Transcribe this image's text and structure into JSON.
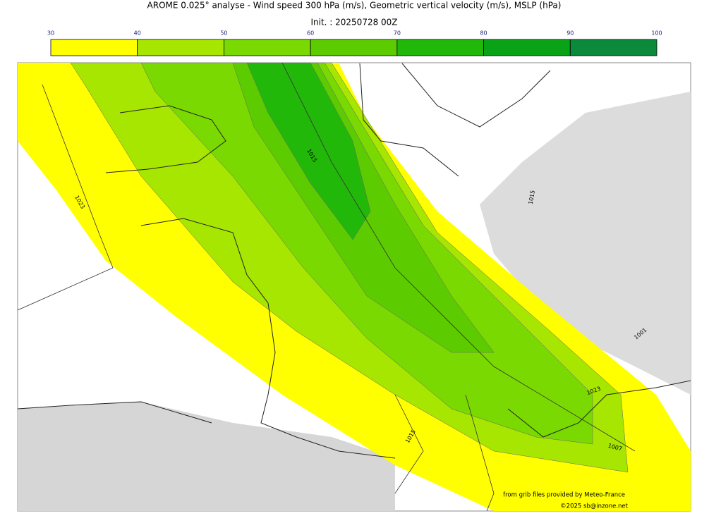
{
  "header": {
    "title": "AROME 0.025° analyse - Wind speed 300 hPa (m/s), Geometric vertical velocity (m/s), MSLP (hPa)",
    "init": "Init. : 20250728 00Z"
  },
  "colorbar": {
    "ticks": [
      30,
      40,
      50,
      60,
      70,
      80,
      90,
      100
    ],
    "colors": [
      "#ffff00",
      "#a6e600",
      "#79d900",
      "#5ccc00",
      "#22b80a",
      "#0aa318",
      "#0a8a3a",
      "#0a7a4a"
    ]
  },
  "contour_labels": [
    "1023",
    "1015",
    "1015",
    "1001",
    "1023",
    "1015",
    "1007"
  ],
  "credits": {
    "source": "from grib files provided by Meteo-France",
    "copyright": "©2025 sb@inzone.net"
  }
}
